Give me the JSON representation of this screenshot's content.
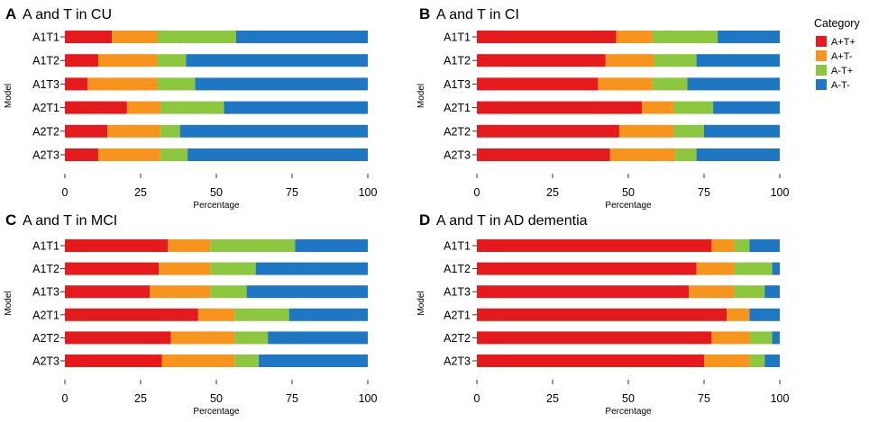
{
  "chart_data": [
    {
      "letter": "A",
      "title": "A and T in CU",
      "type": "bar",
      "orientation": "horizontal",
      "stacked": true,
      "categories": [
        "A1T1",
        "A1T2",
        "A1T3",
        "A2T1",
        "A2T2",
        "A2T3"
      ],
      "series": [
        {
          "name": "A+T+",
          "values": [
            15.5,
            11,
            7.5,
            20.5,
            14,
            11
          ]
        },
        {
          "name": "A+T-",
          "values": [
            15,
            19.5,
            23,
            11,
            17.5,
            20.5
          ]
        },
        {
          "name": "A-T+",
          "values": [
            26,
            9.5,
            12.5,
            21,
            6.5,
            9
          ]
        },
        {
          "name": "A-T-",
          "values": [
            43.5,
            60,
            57,
            47.5,
            62,
            59.5
          ]
        }
      ],
      "xlabel": "Percentage",
      "ylabel": "Model",
      "xlim": [
        0,
        100
      ],
      "xticks": [
        "0",
        "25",
        "50",
        "75",
        "100"
      ]
    },
    {
      "letter": "B",
      "title": "A and T in CI",
      "type": "bar",
      "orientation": "horizontal",
      "stacked": true,
      "categories": [
        "A1T1",
        "A1T2",
        "A1T3",
        "A2T1",
        "A2T2",
        "A2T3"
      ],
      "series": [
        {
          "name": "A+T+",
          "values": [
            46,
            42.5,
            40,
            54.5,
            47,
            44
          ]
        },
        {
          "name": "A+T-",
          "values": [
            12,
            16,
            18,
            10.5,
            18,
            21.5
          ]
        },
        {
          "name": "A-T+",
          "values": [
            21.5,
            14,
            11.5,
            13,
            10,
            7
          ]
        },
        {
          "name": "A-T-",
          "values": [
            20.5,
            27.5,
            30.5,
            22,
            25,
            27.5
          ]
        }
      ],
      "xlabel": "Percentage",
      "ylabel": "Model",
      "xlim": [
        0,
        100
      ],
      "xticks": [
        "0",
        "25",
        "50",
        "75",
        "100"
      ]
    },
    {
      "letter": "C",
      "title": "A and T in MCI",
      "type": "bar",
      "orientation": "horizontal",
      "stacked": true,
      "categories": [
        "A1T1",
        "A1T2",
        "A1T3",
        "A2T1",
        "A2T2",
        "A2T3"
      ],
      "series": [
        {
          "name": "A+T+",
          "values": [
            34,
            31,
            28,
            44,
            35,
            32
          ]
        },
        {
          "name": "A+T-",
          "values": [
            14,
            17,
            20,
            12,
            21,
            24
          ]
        },
        {
          "name": "A-T+",
          "values": [
            28,
            15,
            12,
            18,
            11,
            8
          ]
        },
        {
          "name": "A-T-",
          "values": [
            24,
            37,
            40,
            26,
            33,
            36
          ]
        }
      ],
      "xlabel": "Percentage",
      "ylabel": "Model",
      "xlim": [
        0,
        100
      ],
      "xticks": [
        "0",
        "25",
        "50",
        "75",
        "100"
      ]
    },
    {
      "letter": "D",
      "title": "A and T in AD dementia",
      "type": "bar",
      "orientation": "horizontal",
      "stacked": true,
      "categories": [
        "A1T1",
        "A1T2",
        "A1T3",
        "A2T1",
        "A2T2",
        "A2T3"
      ],
      "series": [
        {
          "name": "A+T+",
          "values": [
            77.5,
            72.5,
            70,
            82.5,
            77.5,
            75
          ]
        },
        {
          "name": "A+T-",
          "values": [
            7.5,
            12.5,
            15,
            7.5,
            12.5,
            15
          ]
        },
        {
          "name": "A-T+",
          "values": [
            5,
            12.5,
            10,
            0,
            7.5,
            5
          ]
        },
        {
          "name": "A-T-",
          "values": [
            10,
            2.5,
            5,
            10,
            2.5,
            5
          ]
        }
      ],
      "xlabel": "Percentage",
      "ylabel": "Model",
      "xlim": [
        0,
        100
      ],
      "xticks": [
        "0",
        "25",
        "50",
        "75",
        "100"
      ]
    }
  ],
  "legend": {
    "title": "Category",
    "items": [
      {
        "label": "A+T+",
        "color": "#e41a1c"
      },
      {
        "label": "A+T-",
        "color": "#f7941d"
      },
      {
        "label": "A-T+",
        "color": "#8dc63f"
      },
      {
        "label": "A-T-",
        "color": "#1f77c4"
      }
    ]
  }
}
